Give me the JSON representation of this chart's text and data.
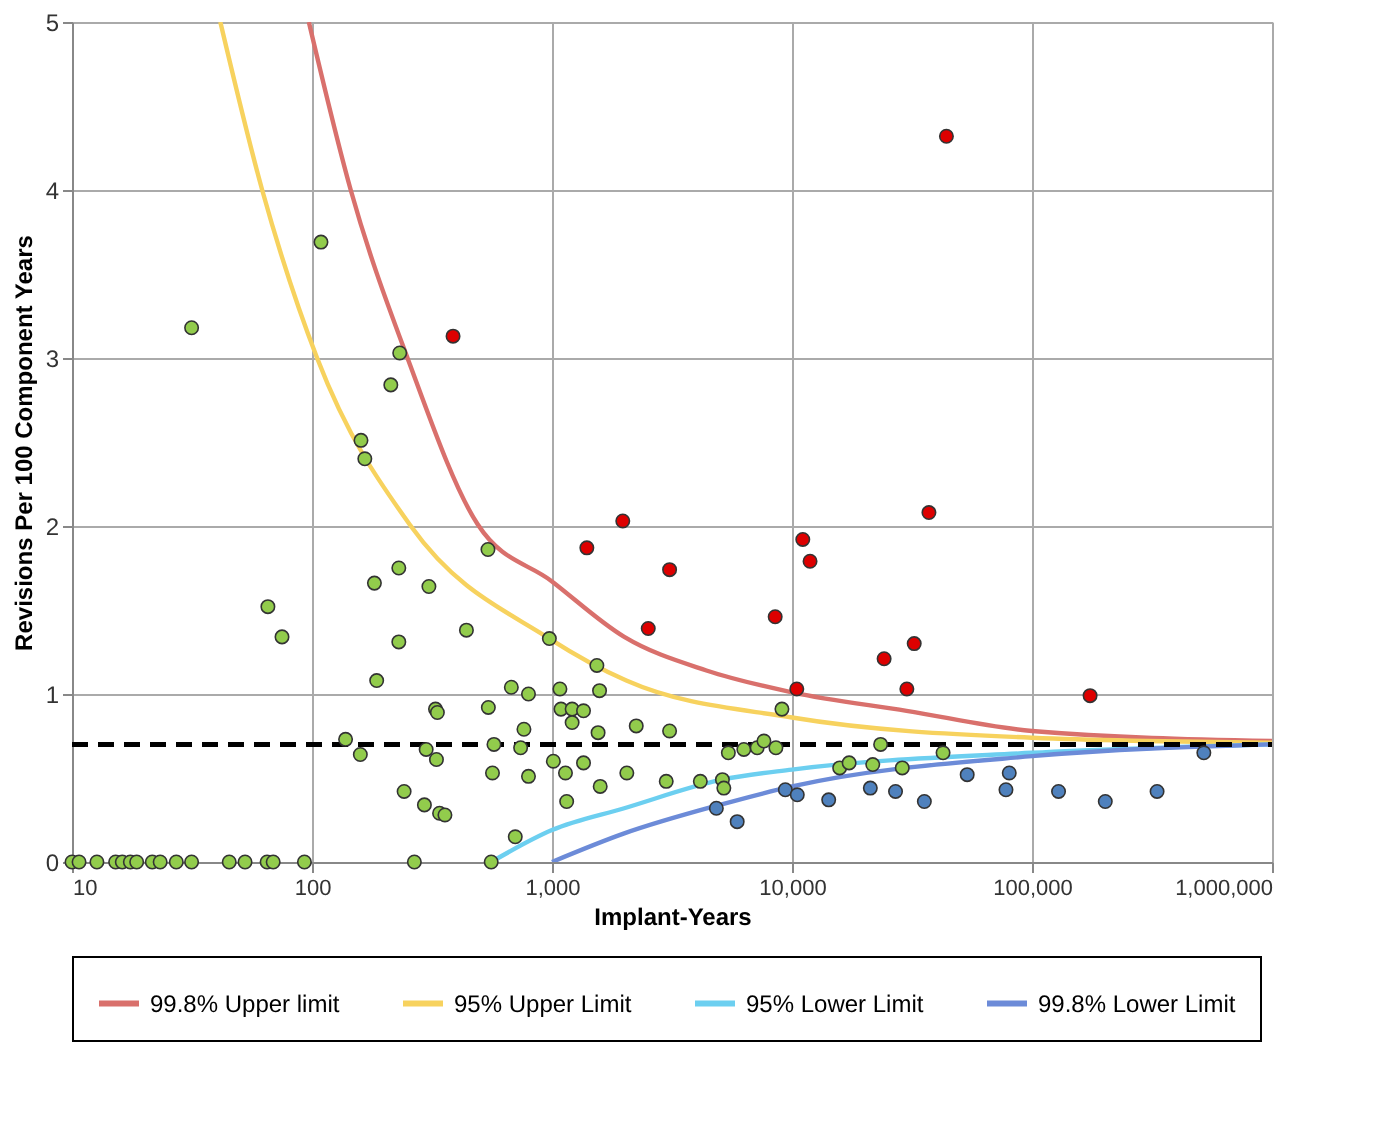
{
  "chart_data": {
    "type": "scatter",
    "xlabel": "Implant-Years",
    "ylabel": "Revisions Per 100 Component Years",
    "log": "x",
    "grid": true,
    "legend": "bottom",
    "xlim": [
      10,
      1000000
    ],
    "ylim": [
      0,
      5
    ],
    "xticks": [
      10,
      100,
      {
        "value": 1000,
        "label": "1,000"
      },
      {
        "value": 10000,
        "label": "10,000"
      },
      {
        "value": 100000,
        "label": "100,000"
      },
      {
        "value": 1000000,
        "label": "1,000,000"
      }
    ],
    "yticks": [
      0,
      1,
      2,
      3,
      4,
      5
    ],
    "ref_lines": [
      {
        "axis": "y",
        "value": 0.7,
        "color": "#000000",
        "line_style": "dashed"
      }
    ],
    "series": [
      {
        "type": "line",
        "name": "99.8% Upper limit",
        "color": "#d9706c",
        "line_style": "solid",
        "x": [
          97,
          145,
          250,
          490,
          1000,
          2000,
          4400,
          10000,
          30000,
          100000,
          1000000
        ],
        "values": [
          5,
          4,
          3,
          2.01,
          1.67,
          1.34,
          1.14,
          1.01,
          0.9,
          0.78,
          0.72
        ]
      },
      {
        "type": "line",
        "name": "95% Upper Limit",
        "color": "#f7d25e",
        "line_style": "solid",
        "x": [
          41.5,
          62,
          105,
          258,
          975,
          2040,
          10000,
          100000,
          1000000
        ],
        "values": [
          5,
          4,
          3,
          2,
          1.33,
          1.08,
          0.86,
          0.74,
          0.71
        ]
      },
      {
        "type": "line",
        "name": "95% Lower Limit",
        "color": "#6ccff0",
        "line_style": "solid",
        "x": [
          558,
          1000,
          2000,
          5100,
          10000,
          100000,
          1000000
        ],
        "values": [
          0,
          0.19,
          0.32,
          0.49,
          0.55,
          0.65,
          0.7
        ]
      },
      {
        "type": "line",
        "name": "99.8% Lower Limit",
        "color": "#6c8bd8",
        "line_style": "solid",
        "x": [
          1000,
          2000,
          5000,
          10000,
          100000,
          1000000
        ],
        "values": [
          0,
          0.17,
          0.34,
          0.45,
          0.63,
          0.7
        ]
      },
      {
        "marker": "circle",
        "color": "#92cc4c",
        "x": [
          10,
          10.7,
          12.7,
          15.2,
          16.2,
          17.5,
          18.6,
          21.6,
          23.3,
          27.2,
          31.5,
          45.2,
          52.6,
          65,
          68.9,
          93,
          267,
          558,
          109,
          31.5,
          232,
          213,
          160,
          166,
          65.5,
          75,
          541,
          182,
          230,
          307,
          230,
          440,
          186,
          975,
          1538,
          1578,
          677,
          798,
          1079,
          327,
          333,
          543,
          1090,
          1213,
          1353,
          1213,
          764,
          1556,
          2244,
          138,
          159,
          299,
          330,
          573,
          740,
          565,
          798,
          1013,
          1138,
          1353,
          2050,
          1151,
          1588,
          242,
          294,
          340,
          358,
          703,
          3090,
          2992,
          4150,
          5130,
          5200,
          5430,
          6300,
          7160,
          7640,
          8570,
          9080,
          23400,
          42600,
          15800,
          17300,
          21700,
          28800
        ],
        "values": [
          0,
          0,
          0,
          0,
          0,
          0,
          0,
          0,
          0,
          0,
          0,
          0,
          0,
          0,
          0,
          0,
          0,
          0,
          3.69,
          3.18,
          3.03,
          2.84,
          2.51,
          2.4,
          1.52,
          1.34,
          1.86,
          1.66,
          1.75,
          1.64,
          1.31,
          1.38,
          1.08,
          1.33,
          1.17,
          1.02,
          1.04,
          1.0,
          1.03,
          0.91,
          0.89,
          0.92,
          0.91,
          0.91,
          0.9,
          0.83,
          0.79,
          0.77,
          0.81,
          0.73,
          0.64,
          0.67,
          0.61,
          0.7,
          0.68,
          0.53,
          0.51,
          0.6,
          0.53,
          0.59,
          0.53,
          0.36,
          0.45,
          0.42,
          0.34,
          0.29,
          0.28,
          0.15,
          0.78,
          0.48,
          0.48,
          0.49,
          0.44,
          0.65,
          0.67,
          0.68,
          0.72,
          0.68,
          0.91,
          0.7,
          0.65,
          0.56,
          0.59,
          0.58,
          0.56
        ]
      },
      {
        "marker": "circle",
        "color": "#dd0000",
        "x": [
          387,
          1397,
          1972,
          2518,
          3090,
          8510,
          11090,
          11890,
          10470,
          24200,
          32300,
          30100,
          37200,
          44000,
          174600
        ],
        "values": [
          3.13,
          1.87,
          2.03,
          1.39,
          1.74,
          1.46,
          1.92,
          1.79,
          1.03,
          1.21,
          1.3,
          1.03,
          2.08,
          4.32,
          0.99
        ]
      },
      {
        "marker": "circle",
        "color": "#4f81bd",
        "x": [
          4840,
          5910,
          9380,
          10520,
          14220,
          21200,
          27000,
          35600,
          53700,
          80400,
          77900,
          129000,
          202000,
          332000,
          520000
        ],
        "values": [
          0.32,
          0.24,
          0.43,
          0.4,
          0.37,
          0.44,
          0.42,
          0.36,
          0.52,
          0.53,
          0.43,
          0.42,
          0.36,
          0.42,
          0.65
        ]
      }
    ]
  }
}
